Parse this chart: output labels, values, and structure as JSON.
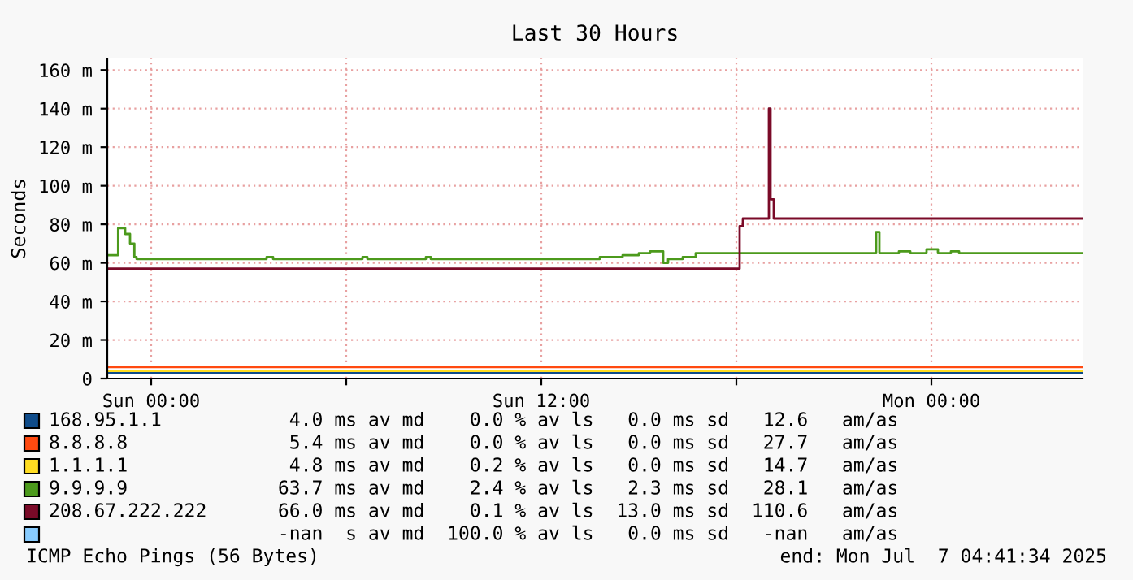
{
  "chart_data": {
    "type": "step",
    "title": "Last 30 Hours",
    "ylabel": "Seconds",
    "xlim": [
      "2025-07-05T22:39",
      "2025-07-07T04:39"
    ],
    "xticks": [
      {
        "value": "2025-07-06T00:00",
        "label": "Sun 00:00"
      },
      {
        "value": "2025-07-06T06:00",
        "label": null
      },
      {
        "value": "2025-07-06T12:00",
        "label": "Sun 12:00"
      },
      {
        "value": "2025-07-06T18:00",
        "label": null
      },
      {
        "value": "2025-07-07T00:00",
        "label": "Mon 00:00"
      }
    ],
    "ylim": [
      0,
      166
    ],
    "yticks": [
      0,
      {
        "value": 20,
        "label": "20 m"
      },
      {
        "value": 40,
        "label": "40 m"
      },
      {
        "value": 60,
        "label": "60 m"
      },
      {
        "value": 80,
        "label": "80 m"
      },
      {
        "value": 100,
        "label": "100 m"
      },
      {
        "value": 120,
        "label": "120 m"
      },
      {
        "value": 140,
        "label": "140 m"
      },
      {
        "value": 160,
        "label": "160 m"
      }
    ],
    "grid": true,
    "legend": "bottom",
    "series": [
      {
        "name": "168.95.1.1",
        "color": "#0f4c8a",
        "x": [
          "2025-07-05T22:41",
          "2025-07-07T04:39"
        ],
        "values": [
          3,
          3
        ]
      },
      {
        "name": "8.8.8.8",
        "color": "#ff4a10",
        "x": [
          "2025-07-05T22:41",
          "2025-07-07T04:39"
        ],
        "values": [
          6,
          6
        ]
      },
      {
        "name": "1.1.1.1",
        "color": "#ffdd22",
        "x": [
          "2025-07-05T22:41",
          "2025-07-07T04:39"
        ],
        "values": [
          4,
          4
        ]
      },
      {
        "name": "9.9.9.9",
        "color": "#4c9a1c",
        "x": [
          "2025-07-05T22:41",
          "2025-07-05T22:59",
          "2025-07-05T23:12",
          "2025-07-05T23:21",
          "2025-07-05T23:29",
          "2025-07-05T23:33",
          "2025-07-06T03:33",
          "2025-07-06T03:45",
          "2025-07-06T06:30",
          "2025-07-06T06:39",
          "2025-07-06T08:27",
          "2025-07-06T08:36",
          "2025-07-06T13:48",
          "2025-07-06T14:30",
          "2025-07-06T15:00",
          "2025-07-06T15:21",
          "2025-07-06T15:45",
          "2025-07-06T15:54",
          "2025-07-06T16:21",
          "2025-07-06T16:45",
          "2025-07-06T22:18",
          "2025-07-06T22:24",
          "2025-07-06T23:00",
          "2025-07-06T23:21",
          "2025-07-06T23:51",
          "2025-07-07T00:12",
          "2025-07-07T00:36",
          "2025-07-07T00:51",
          "2025-07-07T04:39"
        ],
        "values": [
          64,
          78,
          75,
          70,
          63,
          62,
          63,
          62,
          63,
          62,
          63,
          62,
          63,
          64,
          65,
          66,
          60,
          62,
          63,
          65,
          76,
          65,
          66,
          65,
          67,
          65,
          66,
          65,
          65
        ]
      },
      {
        "name": "208.67.222.222",
        "color": "#7a0a28",
        "x": [
          "2025-07-05T22:41",
          "2025-07-06T18:06",
          "2025-07-06T18:12",
          "2025-07-06T19:00",
          "2025-07-06T19:03",
          "2025-07-06T19:09",
          "2025-07-07T04:39"
        ],
        "values": [
          57,
          79,
          83,
          140,
          93,
          83,
          83
        ]
      },
      {
        "color": "#88ccff",
        "values": [
          null
        ]
      }
    ],
    "annotations": [
      "  4.0 ms av md    0.0 % av ls   0.0 ms sd   12.6   am/as",
      "  5.4 ms av md    0.0 % av ls   0.0 ms sd   27.7   am/as",
      "  4.8 ms av md    0.2 % av ls   0.0 ms sd   14.7   am/as",
      " 63.7 ms av md    2.4 % av ls   2.3 ms sd   28.1   am/as",
      " 66.0 ms av md    0.1 % av ls  13.0 ms sd  110.6   am/as",
      " -nan  s av md  100.0 % av ls   0.0 ms sd   -nan   am/as",
      "ICMP Echo Pings (56 Bytes)",
      "end: Mon Jul  7 04:41:34 2025"
    ]
  }
}
